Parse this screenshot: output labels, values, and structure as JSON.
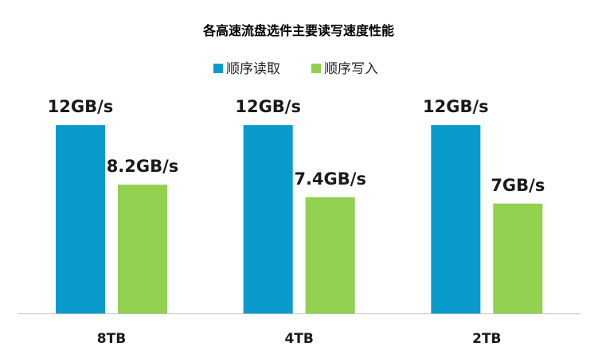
{
  "chart_data": {
    "type": "bar",
    "title": "各高速流盘选件主要读写速度性能",
    "categories": [
      "8TB",
      "4TB",
      "2TB"
    ],
    "series": [
      {
        "name": "顺序读取",
        "color": "#0a9bcd",
        "values": [
          12,
          12,
          12
        ],
        "labels": [
          "12GB/s",
          "12GB/s",
          "12GB/s"
        ]
      },
      {
        "name": "顺序写入",
        "color": "#92d050",
        "values": [
          8.2,
          7.4,
          7
        ],
        "labels": [
          "8.2GB/s",
          "7.4GB/s",
          "7GB/s"
        ]
      }
    ],
    "ylim": [
      0,
      15.3
    ],
    "grid": false,
    "legend": "top-center",
    "axis_color": "#bfbfbf"
  }
}
